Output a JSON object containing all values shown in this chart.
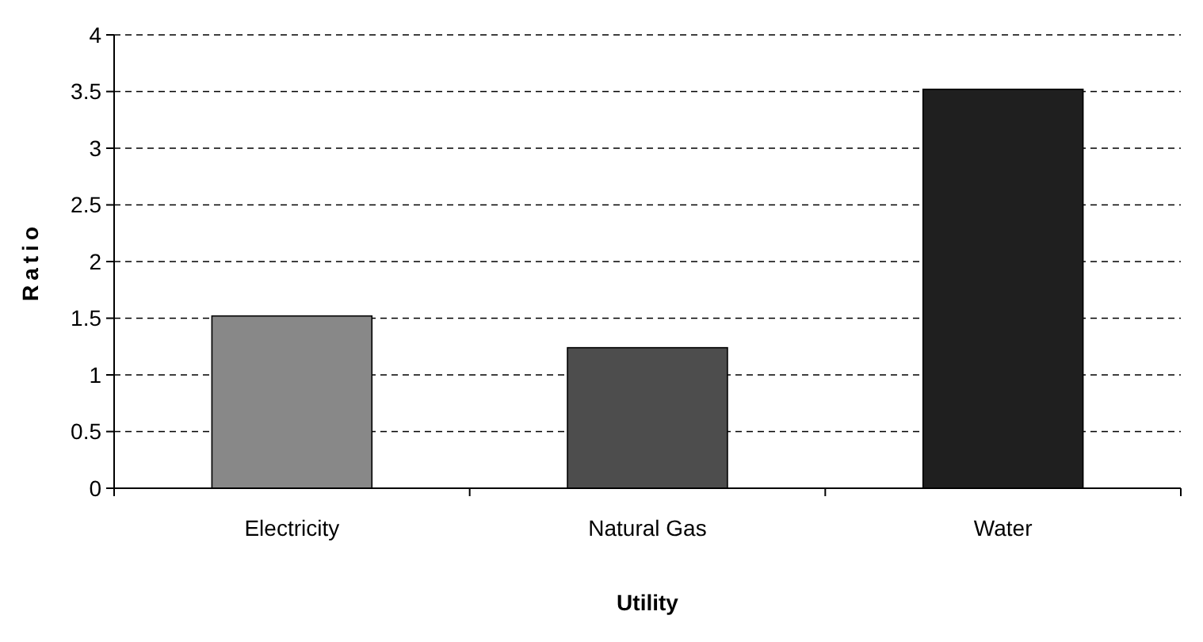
{
  "chart_data": {
    "type": "bar",
    "xlabel": "Utility",
    "ylabel": "Ratio",
    "categories": [
      "Electricity",
      "Natural Gas",
      "Water"
    ],
    "values": [
      1.52,
      1.24,
      3.52
    ],
    "colors": [
      "#888888",
      "#4d4d4d",
      "#1f1f1f"
    ],
    "ylim": [
      0,
      4
    ],
    "yticks": [
      0,
      {
        "value": 0.5,
        "label": "0.5"
      },
      1,
      {
        "value": 1.5,
        "label": "1.5"
      },
      2,
      {
        "value": 2.5,
        "label": "2.5"
      },
      3,
      {
        "value": 3.5,
        "label": "3.5"
      },
      4
    ],
    "grid": "y",
    "line_style": "dashed"
  }
}
